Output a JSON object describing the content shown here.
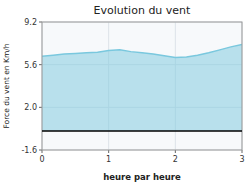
{
  "chart_data": {
    "type": "area",
    "title": "Evolution du vent",
    "xlabel": "heure par heure",
    "ylabel": "Force du vent en Km/h",
    "x": [
      0,
      0.167,
      0.333,
      0.5,
      0.667,
      0.833,
      1.0,
      1.167,
      1.333,
      1.5,
      1.667,
      1.833,
      2.0,
      2.167,
      2.333,
      2.5,
      2.667,
      2.833,
      3.0
    ],
    "values": [
      6.3,
      6.4,
      6.5,
      6.55,
      6.6,
      6.65,
      6.8,
      6.85,
      6.7,
      6.6,
      6.5,
      6.35,
      6.2,
      6.25,
      6.4,
      6.6,
      6.85,
      7.1,
      7.3
    ],
    "color": "#7ac8de",
    "xlim": [
      0,
      3
    ],
    "ylim": [
      -1.6,
      9.2
    ],
    "xticks": [
      0,
      1,
      2,
      3
    ],
    "yticks": [
      -1.6,
      {
        "value": 2.0,
        "label": "2.0"
      },
      5.6,
      9.2
    ],
    "grid": true
  }
}
